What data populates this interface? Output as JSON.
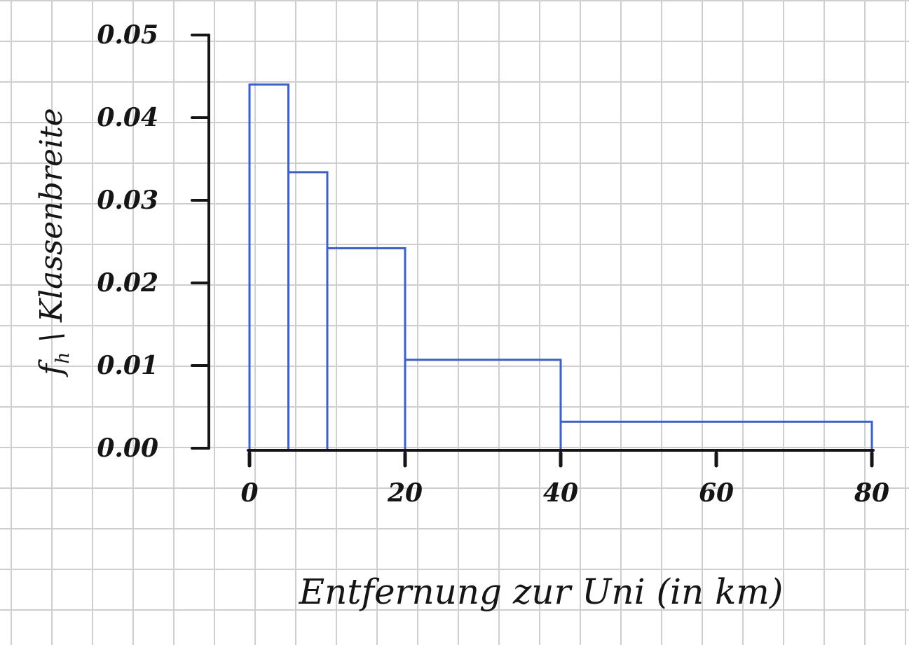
{
  "chart_data": {
    "type": "histogram",
    "title": "",
    "xlabel": "Entfernung zur Uni (in km)",
    "ylabel": "f_h \\ Klassenbreite",
    "ylabel_main": "f",
    "ylabel_sub": "h",
    "ylabel_rest": " \\ Klassenbreite",
    "xlim": [
      0,
      80
    ],
    "ylim": [
      0,
      0.05
    ],
    "x_ticks": [
      0,
      20,
      40,
      60,
      80
    ],
    "x_tick_labels": [
      "0",
      "20",
      "40",
      "60",
      "80"
    ],
    "y_ticks": [
      0,
      0.01,
      0.02,
      0.03,
      0.04,
      0.05
    ],
    "y_tick_labels": [
      "0.00",
      "0.01",
      "0.02",
      "0.03",
      "0.04",
      "0.05"
    ],
    "bins": [
      {
        "from": 0,
        "to": 5,
        "density": 0.044
      },
      {
        "from": 5,
        "to": 10,
        "density": 0.0334
      },
      {
        "from": 10,
        "to": 20,
        "density": 0.0242
      },
      {
        "from": 20,
        "to": 40,
        "density": 0.0107
      },
      {
        "from": 40,
        "to": 80,
        "density": 0.0032
      }
    ],
    "bar_color": "#3a5fd4",
    "axis_color": "#151515",
    "grid": true,
    "legend": "none"
  }
}
